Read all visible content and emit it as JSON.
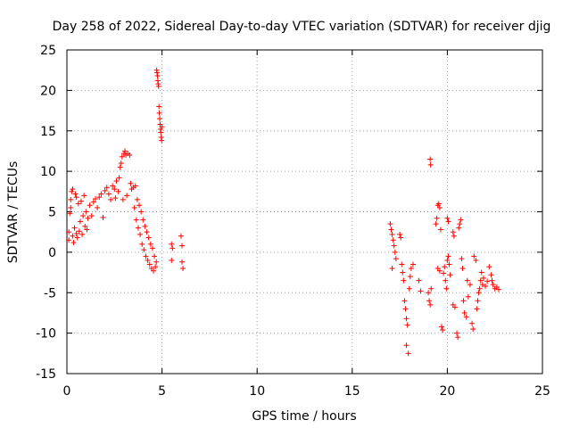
{
  "chart_data": {
    "type": "scatter",
    "title": "Day 258 of 2022, Sidereal Day-to-day VTEC variation (SDTVAR) for receiver djig",
    "xlabel": "GPS time / hours",
    "ylabel": "SDTVAR / TECUs",
    "xlim": [
      0,
      25
    ],
    "ylim": [
      -15,
      25
    ],
    "xticks": [
      "0",
      "5",
      "10",
      "15",
      "20",
      "25"
    ],
    "yticks": [
      "25",
      "20",
      "15",
      "10",
      "5",
      "0",
      "-5",
      "-10",
      "-15"
    ],
    "grid": true,
    "marker": "+",
    "series_color": "#ff0000",
    "series": [
      {
        "name": "SDTVAR",
        "points": [
          [
            0.1,
            1.5
          ],
          [
            0.1,
            2.5
          ],
          [
            0.15,
            4.8
          ],
          [
            0.2,
            5.5
          ],
          [
            0.2,
            6.5
          ],
          [
            0.25,
            7.5
          ],
          [
            0.3,
            7.8
          ],
          [
            0.3,
            2.0
          ],
          [
            0.35,
            1.2
          ],
          [
            0.4,
            3.0
          ],
          [
            0.45,
            7.2
          ],
          [
            0.5,
            6.8
          ],
          [
            0.5,
            2.3
          ],
          [
            0.55,
            1.8
          ],
          [
            0.6,
            6.0
          ],
          [
            0.65,
            2.6
          ],
          [
            0.7,
            3.8
          ],
          [
            0.75,
            6.3
          ],
          [
            0.8,
            2.2
          ],
          [
            0.85,
            4.5
          ],
          [
            0.9,
            7.0
          ],
          [
            0.95,
            3.2
          ],
          [
            1.0,
            5.0
          ],
          [
            1.05,
            2.8
          ],
          [
            1.1,
            4.2
          ],
          [
            1.2,
            5.8
          ],
          [
            1.3,
            4.5
          ],
          [
            1.4,
            6.2
          ],
          [
            1.5,
            6.6
          ],
          [
            1.6,
            5.5
          ],
          [
            1.7,
            6.8
          ],
          [
            1.8,
            7.2
          ],
          [
            1.9,
            4.3
          ],
          [
            2.0,
            7.6
          ],
          [
            2.1,
            8.0
          ],
          [
            2.2,
            7.2
          ],
          [
            2.3,
            6.5
          ],
          [
            2.4,
            8.2
          ],
          [
            2.5,
            7.8
          ],
          [
            2.55,
            6.7
          ],
          [
            2.6,
            8.8
          ],
          [
            2.7,
            7.5
          ],
          [
            2.75,
            9.2
          ],
          [
            2.8,
            10.5
          ],
          [
            2.85,
            11.0
          ],
          [
            2.9,
            11.8
          ],
          [
            2.95,
            6.5
          ],
          [
            3.0,
            12.2
          ],
          [
            3.05,
            12.5
          ],
          [
            3.1,
            12.0
          ],
          [
            3.15,
            7.0
          ],
          [
            3.2,
            12.2
          ],
          [
            3.3,
            12.0
          ],
          [
            3.35,
            8.5
          ],
          [
            3.4,
            7.8
          ],
          [
            3.5,
            8.0
          ],
          [
            3.55,
            5.5
          ],
          [
            3.6,
            8.2
          ],
          [
            3.65,
            4.0
          ],
          [
            3.7,
            6.5
          ],
          [
            3.75,
            3.0
          ],
          [
            3.8,
            5.8
          ],
          [
            3.85,
            2.2
          ],
          [
            3.9,
            5.0
          ],
          [
            3.95,
            1.0
          ],
          [
            4.0,
            4.0
          ],
          [
            4.05,
            0.3
          ],
          [
            4.1,
            3.2
          ],
          [
            4.15,
            -0.5
          ],
          [
            4.2,
            2.5
          ],
          [
            4.25,
            -1.0
          ],
          [
            4.3,
            1.8
          ],
          [
            4.35,
            -1.5
          ],
          [
            4.4,
            1.0
          ],
          [
            4.45,
            -2.0
          ],
          [
            4.5,
            0.5
          ],
          [
            4.55,
            -2.3
          ],
          [
            4.6,
            -0.5
          ],
          [
            4.65,
            -1.8
          ],
          [
            4.7,
            -1.2
          ],
          [
            4.72,
            22.5
          ],
          [
            4.74,
            22.2
          ],
          [
            4.76,
            21.8
          ],
          [
            4.78,
            21.2
          ],
          [
            4.8,
            20.8
          ],
          [
            4.82,
            20.5
          ],
          [
            4.84,
            18.0
          ],
          [
            4.86,
            17.2
          ],
          [
            4.88,
            16.5
          ],
          [
            4.9,
            15.8
          ],
          [
            4.92,
            15.2
          ],
          [
            4.94,
            14.8
          ],
          [
            4.96,
            14.2
          ],
          [
            4.98,
            13.8
          ],
          [
            5.0,
            15.5
          ],
          [
            5.5,
            1.0
          ],
          [
            5.5,
            -1.0
          ],
          [
            5.55,
            0.5
          ],
          [
            6.0,
            2.0
          ],
          [
            6.05,
            0.8
          ],
          [
            6.05,
            -1.2
          ],
          [
            6.1,
            -2.0
          ],
          [
            17.0,
            3.5
          ],
          [
            17.05,
            2.8
          ],
          [
            17.1,
            2.2
          ],
          [
            17.15,
            1.5
          ],
          [
            17.2,
            0.8
          ],
          [
            17.25,
            0.0
          ],
          [
            17.3,
            -0.8
          ],
          [
            17.1,
            -2.0
          ],
          [
            17.5,
            2.2
          ],
          [
            17.55,
            1.8
          ],
          [
            17.6,
            -1.5
          ],
          [
            17.65,
            -2.5
          ],
          [
            17.7,
            -3.5
          ],
          [
            17.75,
            -6.0
          ],
          [
            17.8,
            -7.0
          ],
          [
            17.85,
            -8.2
          ],
          [
            17.9,
            -9.0
          ],
          [
            17.95,
            -12.5
          ],
          [
            17.85,
            -11.5
          ],
          [
            18.0,
            -4.5
          ],
          [
            18.05,
            -3.0
          ],
          [
            18.1,
            -2.0
          ],
          [
            18.2,
            -1.5
          ],
          [
            18.5,
            -3.5
          ],
          [
            18.6,
            -4.8
          ],
          [
            19.0,
            -5.0
          ],
          [
            19.05,
            -6.0
          ],
          [
            19.1,
            -6.5
          ],
          [
            19.1,
            11.5
          ],
          [
            19.12,
            10.8
          ],
          [
            19.15,
            -4.5
          ],
          [
            19.4,
            3.5
          ],
          [
            19.45,
            4.2
          ],
          [
            19.5,
            5.8
          ],
          [
            19.55,
            6.0
          ],
          [
            19.6,
            5.5
          ],
          [
            19.65,
            2.8
          ],
          [
            19.5,
            -2.0
          ],
          [
            19.6,
            -2.3
          ],
          [
            19.7,
            -9.2
          ],
          [
            19.75,
            -9.6
          ],
          [
            19.8,
            -2.6
          ],
          [
            19.85,
            -1.8
          ],
          [
            19.9,
            -3.5
          ],
          [
            19.95,
            -4.5
          ],
          [
            20.0,
            4.2
          ],
          [
            20.05,
            3.8
          ],
          [
            20.0,
            -1.0
          ],
          [
            20.05,
            -0.5
          ],
          [
            20.1,
            -1.5
          ],
          [
            20.15,
            -2.8
          ],
          [
            20.3,
            2.5
          ],
          [
            20.35,
            2.0
          ],
          [
            20.3,
            -6.5
          ],
          [
            20.4,
            -6.8
          ],
          [
            20.5,
            -10.0
          ],
          [
            20.55,
            -10.5
          ],
          [
            20.6,
            3.0
          ],
          [
            20.65,
            3.5
          ],
          [
            20.7,
            4.0
          ],
          [
            20.75,
            -0.8
          ],
          [
            20.8,
            -2.0
          ],
          [
            20.85,
            -6.0
          ],
          [
            20.9,
            -7.5
          ],
          [
            21.0,
            -8.0
          ],
          [
            21.05,
            -3.5
          ],
          [
            21.1,
            -5.5
          ],
          [
            21.2,
            -4.0
          ],
          [
            21.3,
            -8.8
          ],
          [
            21.35,
            -9.5
          ],
          [
            21.4,
            -0.5
          ],
          [
            21.5,
            -1.0
          ],
          [
            21.55,
            -7.0
          ],
          [
            21.6,
            -6.0
          ],
          [
            21.65,
            -5.0
          ],
          [
            21.7,
            -4.5
          ],
          [
            21.75,
            -3.5
          ],
          [
            21.8,
            -2.5
          ],
          [
            21.85,
            -4.0
          ],
          [
            21.9,
            -3.2
          ],
          [
            22.0,
            -4.2
          ],
          [
            22.1,
            -3.6
          ],
          [
            22.2,
            -1.8
          ],
          [
            22.3,
            -2.8
          ],
          [
            22.35,
            -3.5
          ],
          [
            22.4,
            -4.0
          ],
          [
            22.5,
            -4.5
          ],
          [
            22.6,
            -4.3
          ],
          [
            22.7,
            -4.6
          ]
        ]
      }
    ]
  }
}
